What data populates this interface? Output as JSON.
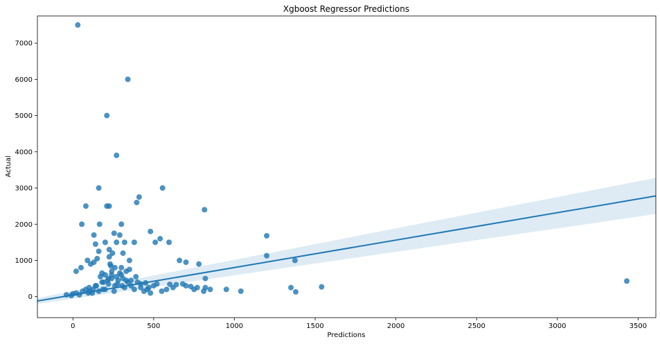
{
  "chart_data": {
    "type": "scatter",
    "title": "Xgboost Regressor Predictions",
    "xlabel": "Predictions",
    "ylabel": "Actual",
    "xlim": [
      -220,
      3610
    ],
    "ylim": [
      -580,
      7750
    ],
    "xticks": [
      0,
      500,
      1000,
      1500,
      2000,
      2500,
      3000,
      3500
    ],
    "yticks": [
      0,
      1000,
      2000,
      3000,
      4000,
      5000,
      6000,
      7000
    ],
    "grid": false,
    "colors": {
      "points": "#1f77b4",
      "line": "#1f77b4",
      "band": "#1f77b4"
    },
    "regression": {
      "x": [
        -220,
        3610
      ],
      "y": [
        -120,
        2780
      ],
      "ci_upper": [
        -40,
        3280
      ],
      "ci_lower": [
        -200,
        2280
      ]
    },
    "series": [
      {
        "x": [
          30,
          340,
          210,
          270,
          160,
          555,
          410,
          395,
          815,
          80,
          55,
          210,
          225,
          165,
          300,
          130,
          1200,
          255,
          290,
          320,
          200,
          225,
          510,
          480,
          540,
          595,
          270,
          140,
          160,
          245,
          380,
          350,
          225,
          310,
          1200,
          1375,
          780,
          820,
          660,
          700,
          235,
          300,
          110,
          130,
          90,
          150,
          50,
          20,
          180,
          240,
          270,
          220,
          330,
          400,
          450,
          520,
          600,
          640,
          700,
          730,
          770,
          820,
          850,
          950,
          1040,
          1350,
          1380,
          1540,
          3430,
          -40,
          -10,
          0,
          20,
          40,
          60,
          80,
          100,
          120,
          140,
          160,
          180,
          200,
          220,
          240,
          260,
          280,
          300,
          320,
          340,
          360,
          380,
          420,
          440,
          460,
          480,
          500,
          550,
          580,
          620,
          680,
          750,
          810,
          240,
          200,
          190,
          260,
          290,
          310,
          170,
          350,
          230,
          215,
          275,
          305,
          185,
          255,
          145,
          125,
          105,
          95,
          330,
          360,
          390,
          420,
          470
        ],
        "y": [
          7500,
          6000,
          5000,
          3900,
          3000,
          3000,
          2750,
          2600,
          2400,
          2500,
          2000,
          2500,
          2500,
          2000,
          2000,
          1700,
          1680,
          1750,
          1700,
          1500,
          1500,
          1300,
          1500,
          1800,
          1600,
          1500,
          1500,
          1450,
          1250,
          1200,
          1500,
          1000,
          1100,
          1200,
          1130,
          1000,
          900,
          500,
          1000,
          950,
          850,
          800,
          900,
          950,
          1000,
          1050,
          800,
          700,
          650,
          600,
          550,
          500,
          450,
          400,
          380,
          350,
          340,
          330,
          300,
          280,
          250,
          250,
          200,
          200,
          150,
          250,
          130,
          270,
          430,
          50,
          30,
          80,
          100,
          50,
          150,
          200,
          250,
          100,
          300,
          150,
          400,
          200,
          350,
          500,
          300,
          450,
          600,
          250,
          400,
          300,
          200,
          250,
          150,
          200,
          100,
          300,
          150,
          200,
          250,
          350,
          200,
          150,
          700,
          600,
          400,
          800,
          650,
          500,
          550,
          750,
          900,
          450,
          350,
          300,
          200,
          150,
          300,
          200,
          150,
          100,
          700,
          450,
          550,
          350,
          250
        ]
      }
    ]
  }
}
